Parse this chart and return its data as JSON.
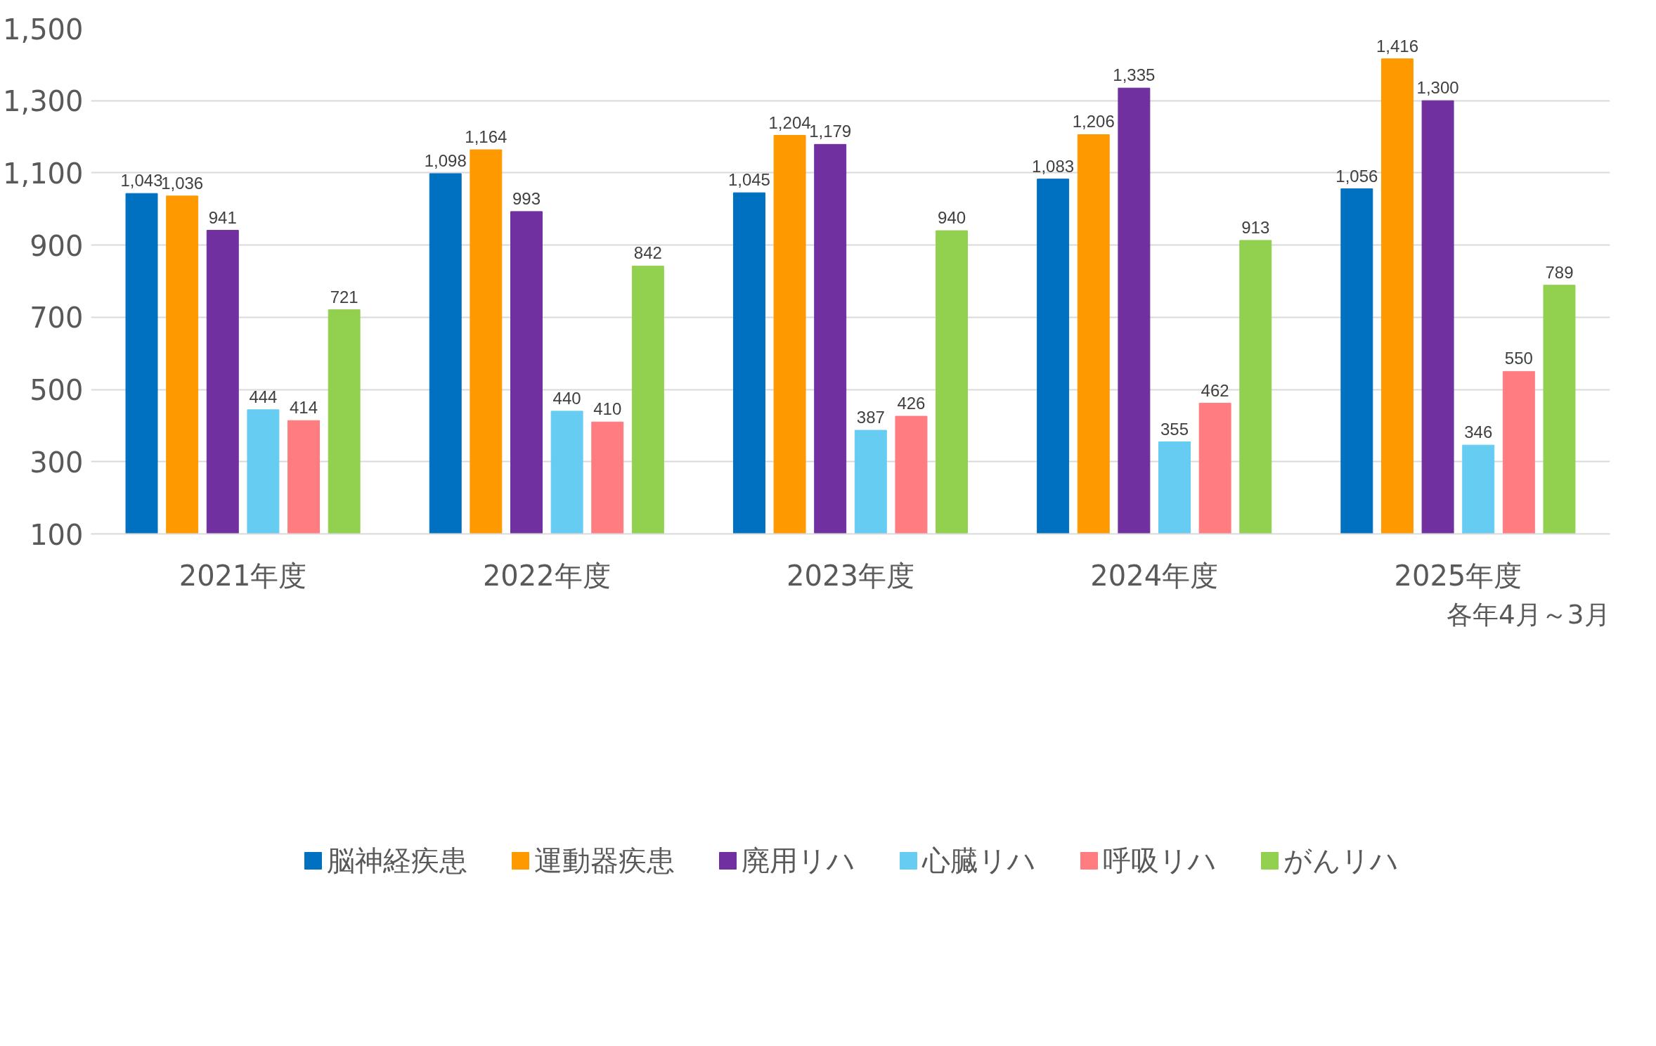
{
  "chart_data": {
    "type": "bar",
    "categories": [
      "2021年度",
      "2022年度",
      "2023年度",
      "2024年度",
      "2025年度"
    ],
    "series": [
      {
        "name": "脳神経疾患",
        "color": "#0070c0",
        "values": [
          1043,
          1098,
          1045,
          1083,
          1056
        ],
        "value_labels": [
          "1,043",
          "1,098",
          "1,045",
          "1,083",
          "1,056"
        ]
      },
      {
        "name": "運動器疾患",
        "color": "#ff9900",
        "values": [
          1036,
          1164,
          1204,
          1206,
          1416
        ],
        "value_labels": [
          "1,036",
          "1,164",
          "1,204",
          "1,206",
          "1,416"
        ]
      },
      {
        "name": "廃用リハ",
        "color": "#7030a0",
        "values": [
          941,
          993,
          1179,
          1335,
          1300
        ],
        "value_labels": [
          "941",
          "993",
          "1,179",
          "1,335",
          "1,300"
        ]
      },
      {
        "name": "心臓リハ",
        "color": "#66ccf2",
        "values": [
          444,
          440,
          387,
          355,
          346
        ],
        "value_labels": [
          "444",
          "440",
          "387",
          "355",
          "346"
        ]
      },
      {
        "name": "呼吸リハ",
        "color": "#ff7c80",
        "values": [
          414,
          410,
          426,
          462,
          550
        ],
        "value_labels": [
          "414",
          "410",
          "426",
          "462",
          "550"
        ]
      },
      {
        "name": "がんリハ",
        "color": "#92d050",
        "values": [
          721,
          842,
          940,
          913,
          789
        ],
        "value_labels": [
          "721",
          "842",
          "940",
          "913",
          "789"
        ]
      }
    ],
    "ylim": [
      100,
      1500
    ],
    "yticks": [
      100,
      300,
      500,
      700,
      900,
      {
        "value": 1100,
        "label": "1,100"
      },
      {
        "value": 1300,
        "label": "1,300"
      },
      {
        "value": 1500,
        "label": "1,500"
      }
    ],
    "grid": "y",
    "legend": "bottom",
    "annotations": [
      "各年4月～3月"
    ]
  }
}
